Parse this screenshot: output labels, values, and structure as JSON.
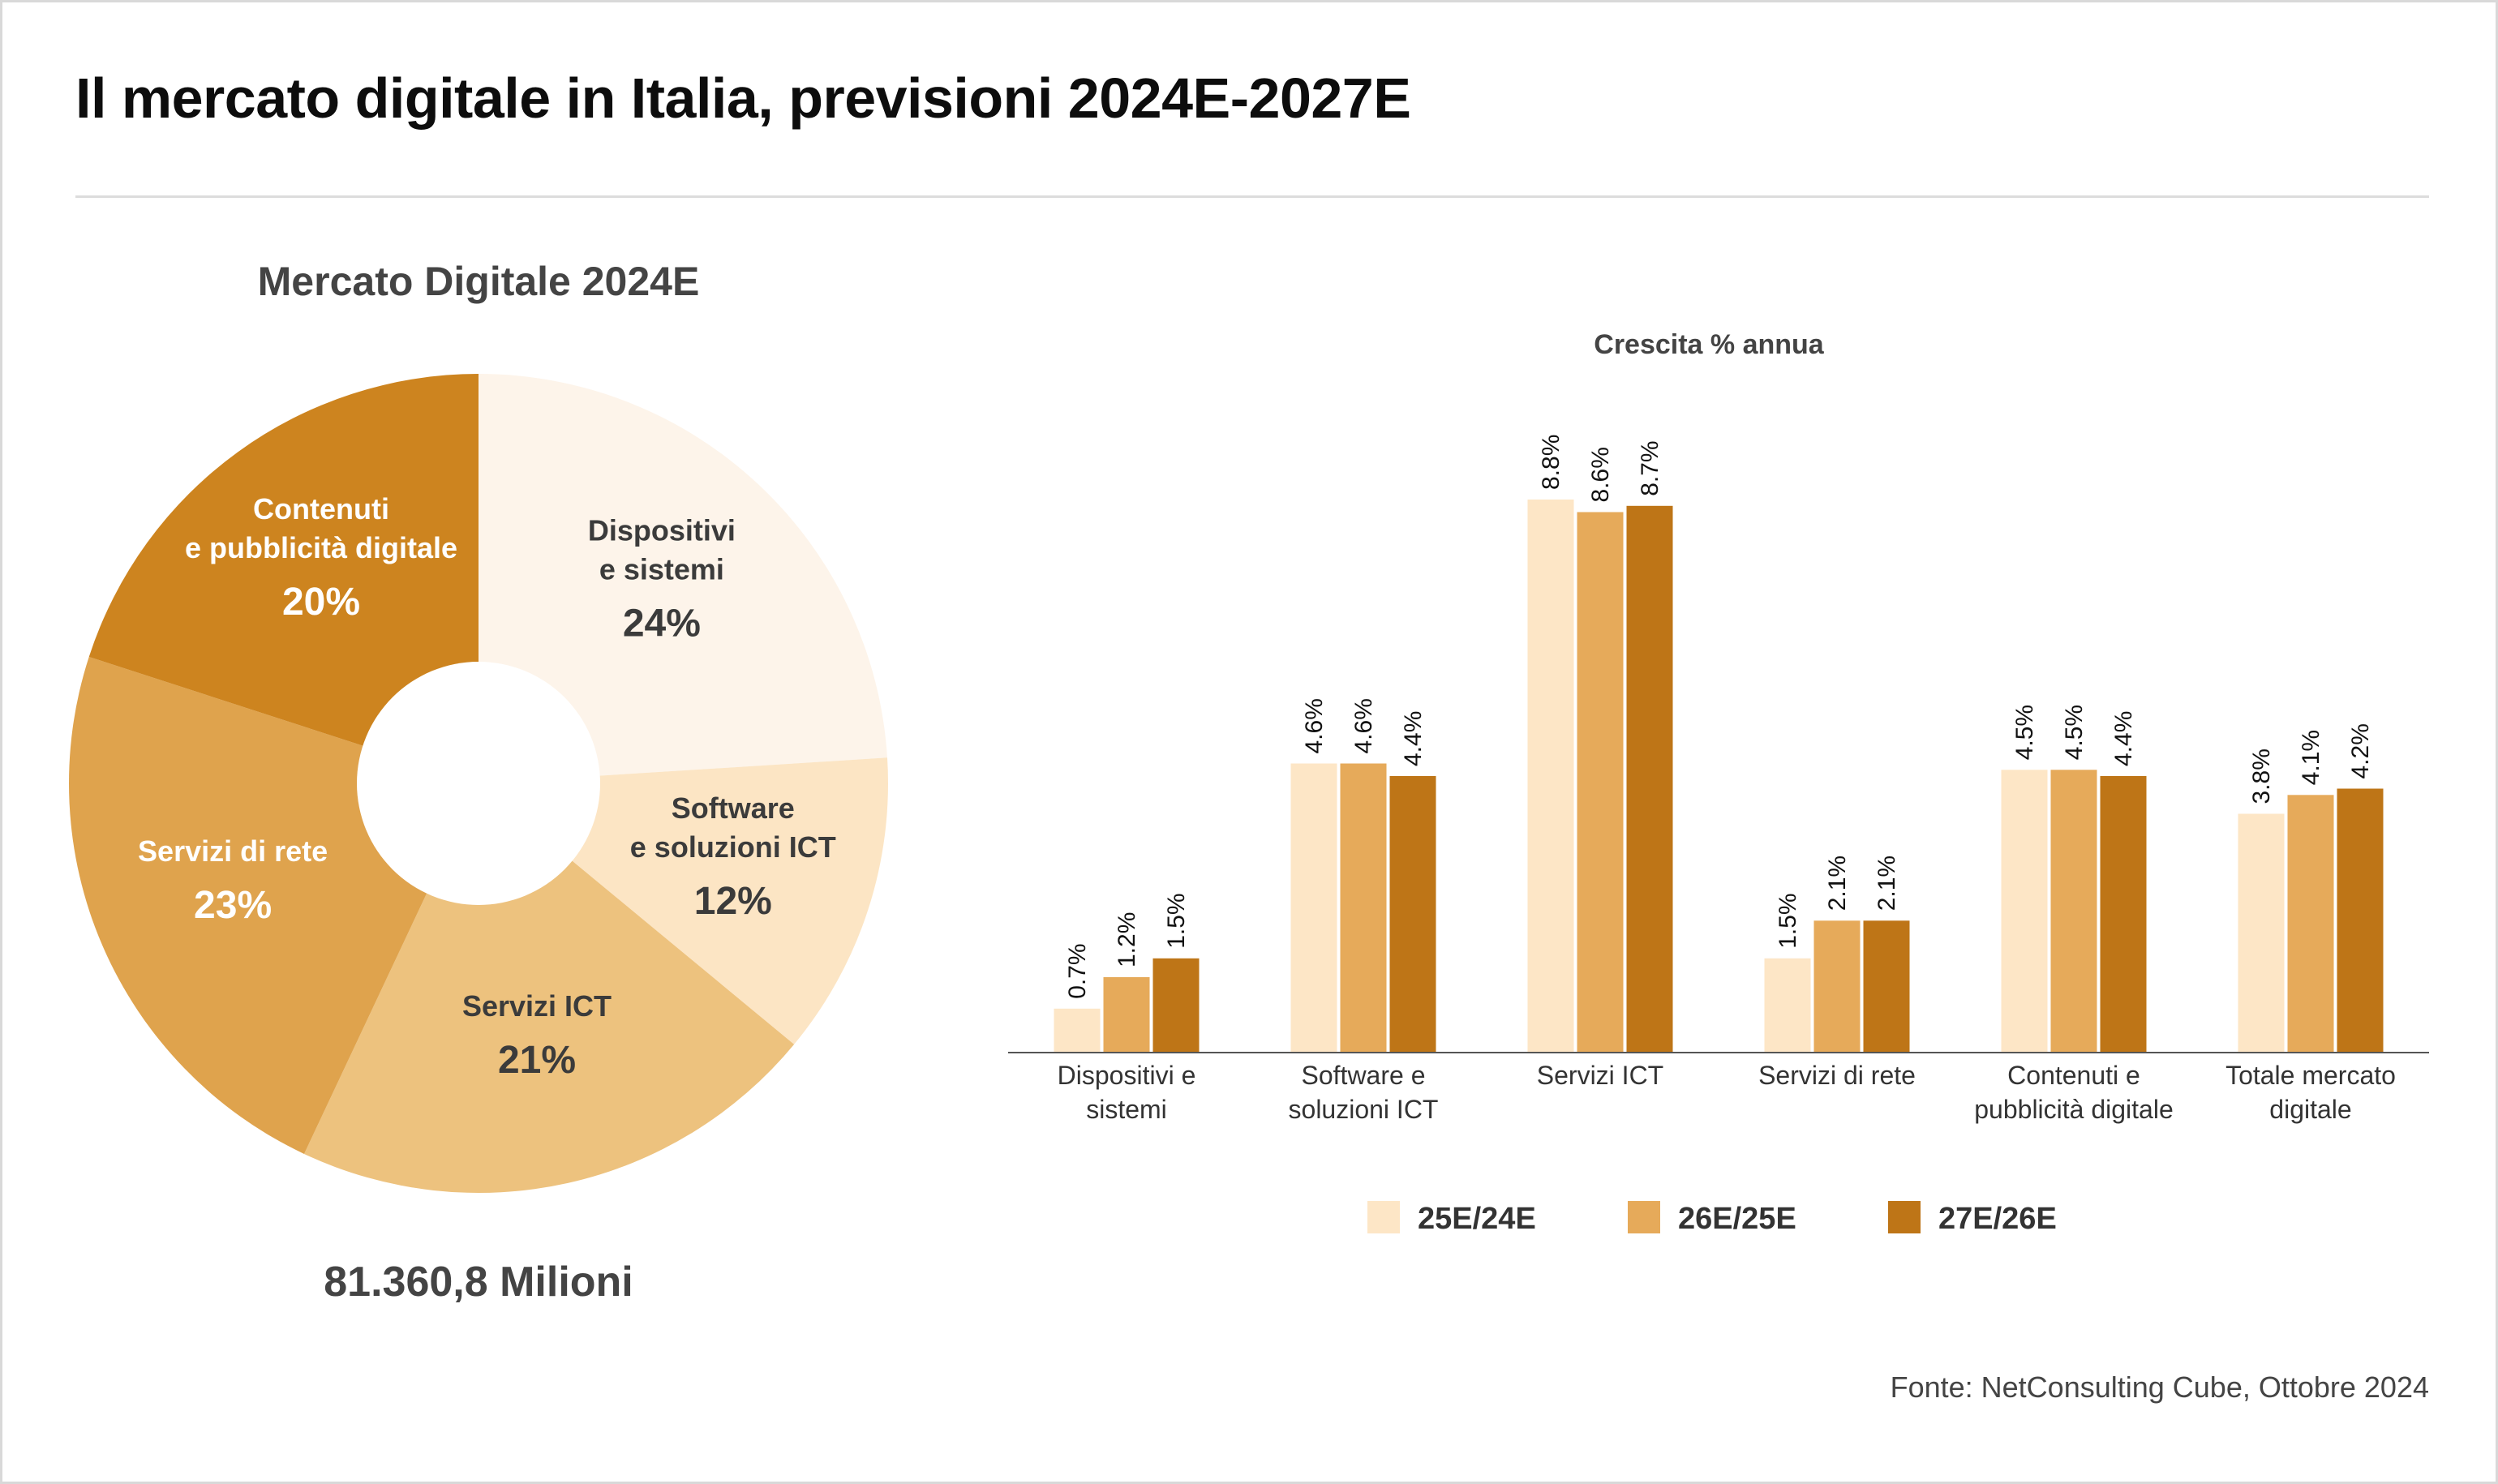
{
  "title": "Il mercato digitale in Italia, previsioni 2024E-2027E",
  "source": "Fonte: NetConsulting Cube, Ottobre 2024",
  "chart_data": [
    {
      "type": "pie",
      "title": "Mercato Digitale 2024E",
      "total_label": "81.360,8 Milioni",
      "slices": [
        {
          "label": [
            "Dispositivi",
            "e sistemi"
          ],
          "value": 24,
          "pct_label": "24%",
          "color": "#fdf4ea",
          "text_color": "#3b3b3b"
        },
        {
          "label": [
            "Software",
            "e soluzioni ICT"
          ],
          "value": 12,
          "pct_label": "12%",
          "color": "#fce5c4",
          "text_color": "#3b3b3b"
        },
        {
          "label": [
            "Servizi ICT"
          ],
          "value": 21,
          "pct_label": "21%",
          "color": "#edc27e",
          "text_color": "#3b3b3b"
        },
        {
          "label": [
            "Servizi di rete"
          ],
          "value": 23,
          "pct_label": "23%",
          "color": "#dfa34d",
          "text_color": "#ffffff"
        },
        {
          "label": [
            "Contenuti",
            "e pubblicità digitale"
          ],
          "value": 20,
          "pct_label": "20%",
          "color": "#cd841f",
          "text_color": "#ffffff"
        }
      ]
    },
    {
      "type": "bar",
      "title": "Crescita % annua",
      "categories": [
        [
          "Dispositivi e",
          "sistemi"
        ],
        [
          "Software e",
          "soluzioni ICT"
        ],
        [
          "Servizi ICT"
        ],
        [
          "Servizi di rete"
        ],
        [
          "Contenuti e",
          "pubblicità digitale"
        ],
        [
          "Totale mercato",
          "digitale"
        ]
      ],
      "series": [
        {
          "name": "25E/24E",
          "color": "#fde6c6",
          "values": [
            0.7,
            4.6,
            8.8,
            1.5,
            4.5,
            3.8
          ],
          "labels": [
            "0.7%",
            "4.6%",
            "8.8%",
            "1.5%",
            "4.5%",
            "3.8%"
          ]
        },
        {
          "name": "26E/25E",
          "color": "#e6aa5a",
          "values": [
            1.2,
            4.6,
            8.6,
            2.1,
            4.5,
            4.1
          ],
          "labels": [
            "1.2%",
            "4.6%",
            "8.6%",
            "2.1%",
            "4.5%",
            "4.1%"
          ]
        },
        {
          "name": "27E/26E",
          "color": "#be7517",
          "values": [
            1.5,
            4.4,
            8.7,
            2.1,
            4.4,
            4.2
          ],
          "labels": [
            "1.5%",
            "4.4%",
            "8.7%",
            "2.1%",
            "4.4%",
            "4.2%"
          ]
        }
      ],
      "ylim": [
        0,
        8.8
      ],
      "grid": false,
      "legend_position": "bottom"
    }
  ]
}
